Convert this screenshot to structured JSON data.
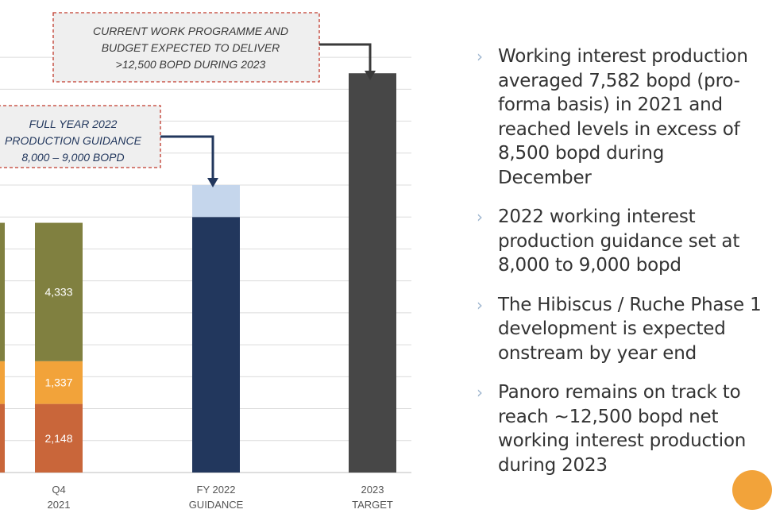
{
  "chart_data": {
    "type": "bar",
    "stacked": true,
    "categories": [
      {
        "line1": "Q4",
        "line2": "2021"
      },
      {
        "line1": "FY 2022",
        "line2": "GUIDANCE"
      },
      {
        "line1": "2023",
        "line2": "TARGET"
      }
    ],
    "partial_bar": {
      "values": [
        2148,
        1337,
        4333
      ],
      "colors": [
        "#c9663a",
        "#f2a33a",
        "#808040"
      ]
    },
    "bars": [
      {
        "segments": [
          {
            "value": 2148,
            "label": "2,148",
            "color": "#c9663a"
          },
          {
            "value": 1337,
            "label": "1,337",
            "color": "#f2a33a"
          },
          {
            "value": 4333,
            "label": "4,333",
            "color": "#808040"
          }
        ]
      },
      {
        "segments": [
          {
            "value": 8000,
            "label": "",
            "color": "#22375d"
          },
          {
            "value": 1000,
            "label": "",
            "color": "#c5d6ec"
          }
        ]
      },
      {
        "segments": [
          {
            "value": 12500,
            "label": "",
            "color": "#474747"
          }
        ]
      }
    ],
    "ylim": [
      0,
      13500
    ],
    "grid": true,
    "annotations": [
      {
        "lines": [
          "CURRENT WORK PROGRAMME AND",
          "BUDGET EXPECTED TO DELIVER",
          ">12,500 BOPD DURING 2023"
        ],
        "target": 2,
        "color": "#3a3a3a"
      },
      {
        "lines": [
          "FULL YEAR 2022",
          "PRODUCTION GUIDANCE",
          "8,000 – 9,000 BOPD"
        ],
        "target": 1,
        "color": "#22375d"
      }
    ]
  },
  "bullets": [
    {
      "lines": [
        "Working interest production",
        "averaged 7,582 bopd (pro-",
        "forma basis) in 2021 and",
        "reached levels in excess of",
        "8,500 bopd during",
        "December"
      ]
    },
    {
      "lines": [
        "2022 working interest",
        "production guidance set at",
        "8,000 to 9,000 bopd"
      ]
    },
    {
      "lines": [
        "The Hibiscus / Ruche Phase 1",
        "development is expected",
        "onstream by year end"
      ]
    },
    {
      "lines": [
        "Panoro remains on track to",
        "reach ~12,500 bopd net",
        "working interest production",
        "during 2023"
      ]
    }
  ],
  "bullet_glyph": "›",
  "colors": {
    "accent_orange": "#f2a33a",
    "bullet_chevron": "#9fb6cf",
    "annotation_border": "#c0392b"
  }
}
